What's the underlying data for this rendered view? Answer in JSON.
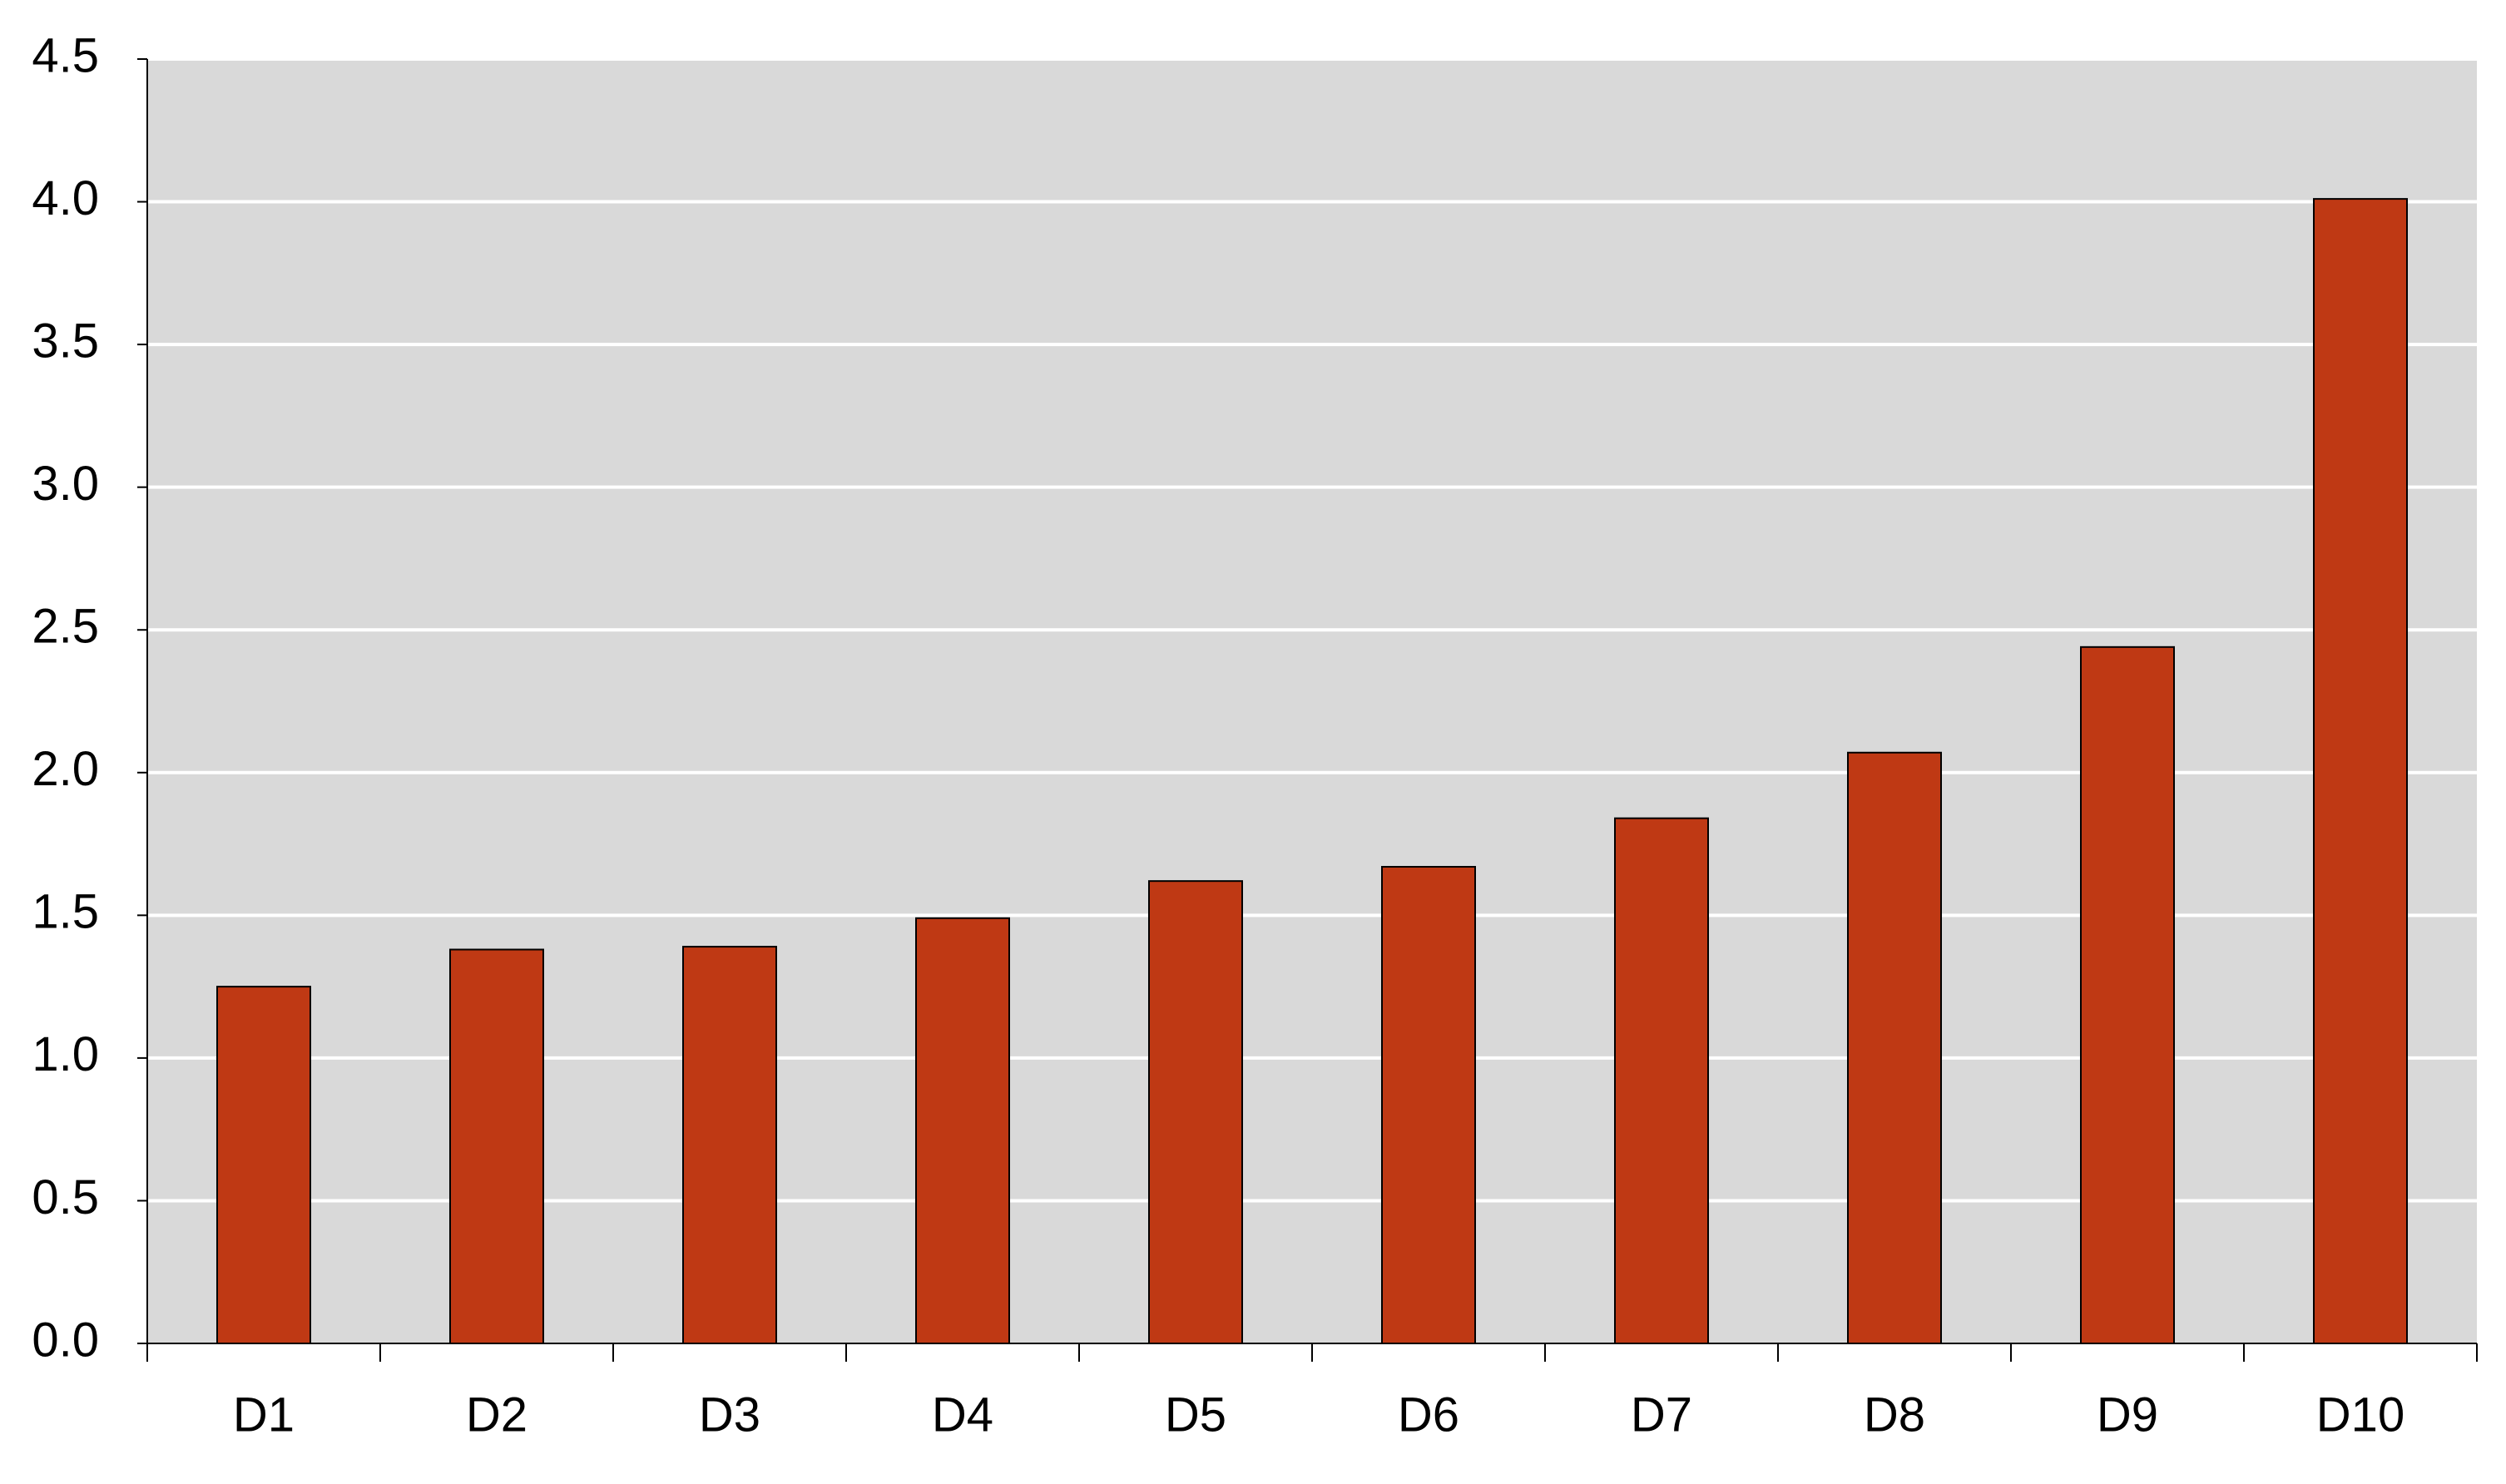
{
  "chart_data": {
    "type": "bar",
    "categories": [
      "D1",
      "D2",
      "D3",
      "D4",
      "D5",
      "D6",
      "D7",
      "D8",
      "D9",
      "D10"
    ],
    "values": [
      1.25,
      1.38,
      1.39,
      1.49,
      1.62,
      1.67,
      1.84,
      2.07,
      2.44,
      4.01
    ],
    "color": "#bf3914",
    "ylim": [
      0,
      4.5
    ],
    "yticks": [
      {
        "value": 0,
        "label": "0.0"
      },
      0.5,
      {
        "value": 1,
        "label": "1.0"
      },
      1.5,
      {
        "value": 2,
        "label": "2.0"
      },
      2.5,
      {
        "value": 3,
        "label": "3.0"
      },
      3.5,
      {
        "value": 4,
        "label": "4.0"
      },
      4.5
    ],
    "grid": true
  }
}
